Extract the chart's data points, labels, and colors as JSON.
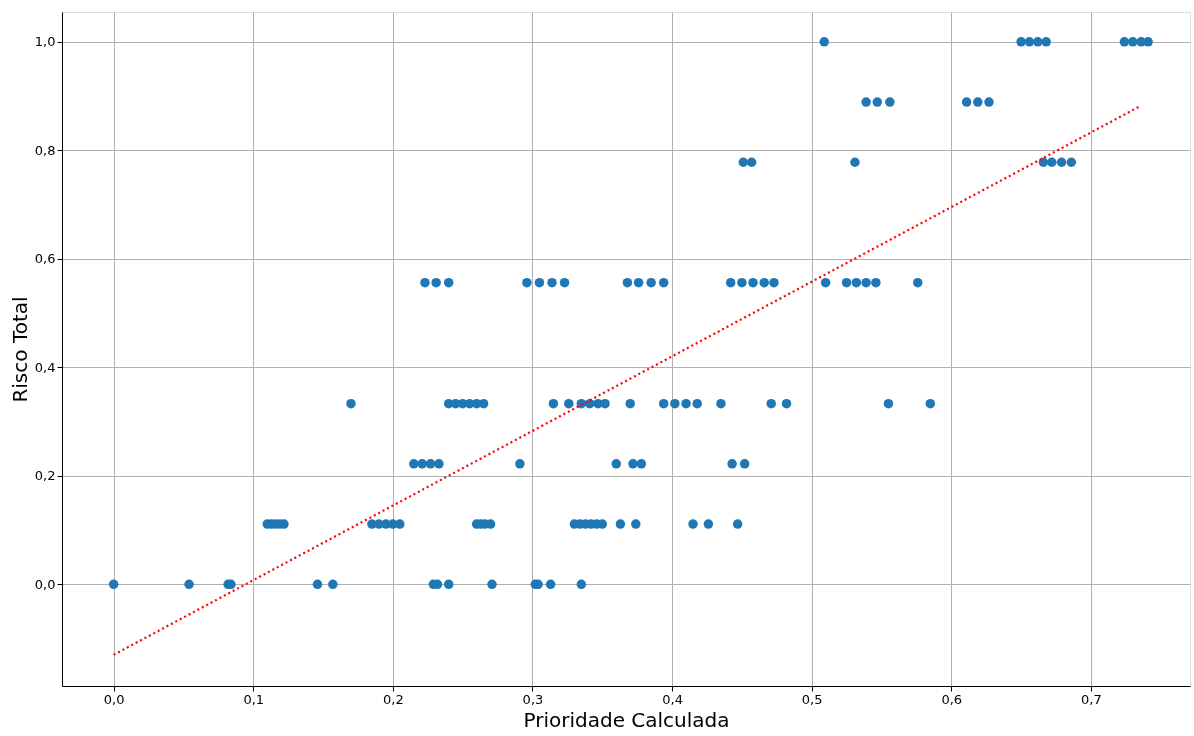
{
  "chart_data": {
    "type": "scatter",
    "xlabel": "Prioridade Calculada",
    "ylabel": "Risco Total",
    "xlim": [
      -0.037,
      0.771
    ],
    "ylim": [
      -0.1875,
      1.055
    ],
    "xticks": [
      {
        "value": 0,
        "label": "0,0"
      },
      {
        "value": 0.1,
        "label": "0,1"
      },
      {
        "value": 0.2,
        "label": "0,2"
      },
      {
        "value": 0.3,
        "label": "0,3"
      },
      {
        "value": 0.4,
        "label": "0,4"
      },
      {
        "value": 0.5,
        "label": "0,5"
      },
      {
        "value": 0.6,
        "label": "0,6"
      },
      {
        "value": 0.7,
        "label": "0,7"
      }
    ],
    "yticks": [
      {
        "value": 0,
        "label": "0,0"
      },
      {
        "value": 0.2,
        "label": "0,2"
      },
      {
        "value": 0.4,
        "label": "0,4"
      },
      {
        "value": 0.6,
        "label": "0,6"
      },
      {
        "value": 0.8,
        "label": "0,8"
      },
      {
        "value": 1,
        "label": "1,0"
      }
    ],
    "grid": true,
    "series": [
      {
        "color": "#1f77b4",
        "marker": "circle",
        "x": [
          0.0,
          0.054,
          0.082,
          0.084,
          0.146,
          0.157,
          0.229,
          0.232,
          0.24,
          0.271,
          0.302,
          0.304,
          0.313,
          0.335,
          0.11,
          0.113,
          0.116,
          0.119,
          0.122,
          0.185,
          0.19,
          0.195,
          0.2,
          0.205,
          0.26,
          0.263,
          0.266,
          0.27,
          0.33,
          0.334,
          0.338,
          0.342,
          0.346,
          0.35,
          0.363,
          0.374,
          0.415,
          0.426,
          0.447,
          0.215,
          0.221,
          0.227,
          0.233,
          0.291,
          0.36,
          0.372,
          0.378,
          0.443,
          0.452,
          0.17,
          0.24,
          0.245,
          0.25,
          0.255,
          0.26,
          0.265,
          0.315,
          0.326,
          0.335,
          0.341,
          0.347,
          0.352,
          0.37,
          0.394,
          0.402,
          0.41,
          0.418,
          0.435,
          0.471,
          0.482,
          0.555,
          0.585,
          0.223,
          0.231,
          0.24,
          0.296,
          0.305,
          0.314,
          0.323,
          0.368,
          0.376,
          0.385,
          0.394,
          0.442,
          0.45,
          0.458,
          0.466,
          0.473,
          0.51,
          0.525,
          0.532,
          0.539,
          0.546,
          0.576,
          0.451,
          0.457,
          0.531,
          0.666,
          0.672,
          0.679,
          0.686,
          0.539,
          0.547,
          0.556,
          0.611,
          0.619,
          0.627,
          0.509,
          0.65,
          0.656,
          0.662,
          0.668,
          0.724,
          0.73,
          0.736,
          0.741
        ],
        "values": [
          0,
          0,
          0,
          0,
          0,
          0,
          0,
          0,
          0,
          0,
          0,
          0,
          0,
          0,
          0.111,
          0.111,
          0.111,
          0.111,
          0.111,
          0.111,
          0.111,
          0.111,
          0.111,
          0.111,
          0.111,
          0.111,
          0.111,
          0.111,
          0.111,
          0.111,
          0.111,
          0.111,
          0.111,
          0.111,
          0.111,
          0.111,
          0.111,
          0.111,
          0.111,
          0.222,
          0.222,
          0.222,
          0.222,
          0.222,
          0.222,
          0.222,
          0.222,
          0.222,
          0.222,
          0.333,
          0.333,
          0.333,
          0.333,
          0.333,
          0.333,
          0.333,
          0.333,
          0.333,
          0.333,
          0.333,
          0.333,
          0.333,
          0.333,
          0.333,
          0.333,
          0.333,
          0.333,
          0.333,
          0.333,
          0.333,
          0.333,
          0.333,
          0.556,
          0.556,
          0.556,
          0.556,
          0.556,
          0.556,
          0.556,
          0.556,
          0.556,
          0.556,
          0.556,
          0.556,
          0.556,
          0.556,
          0.556,
          0.556,
          0.556,
          0.556,
          0.556,
          0.556,
          0.556,
          0.556,
          0.778,
          0.778,
          0.778,
          0.778,
          0.778,
          0.778,
          0.778,
          0.889,
          0.889,
          0.889,
          0.889,
          0.889,
          0.889,
          1.0,
          1.0,
          1.0,
          1.0,
          1.0,
          1.0,
          1.0,
          1.0,
          1.0
        ]
      },
      {
        "type": "line",
        "color": "#ff0000",
        "line_style": "dotted",
        "marker": "none",
        "x": [
          0.0,
          0.735
        ],
        "values": [
          -0.13,
          0.881
        ]
      }
    ]
  }
}
